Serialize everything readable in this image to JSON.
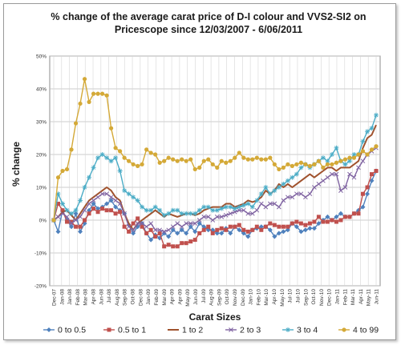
{
  "chart_data": {
    "type": "line",
    "title_line1": "% change  of the average carat price of  D-I colour and VVS2-SI2  on",
    "title_line2": "Pricescope since 12/03/2007 - 6/06/2011",
    "xlabel": "Carat Sizes",
    "ylabel": "% change",
    "ylim": [
      -20,
      50
    ],
    "yticks": [
      "-20%",
      "-10%",
      "0%",
      "10%",
      "20%",
      "30%",
      "40%",
      "50%"
    ],
    "ytick_values": [
      -20,
      -10,
      0,
      10,
      20,
      30,
      40,
      50
    ],
    "grid": true,
    "legend_position": "bottom",
    "x_tick_labels": [
      "Dec-07",
      "Jan-08",
      "Jan-08",
      "Feb-08",
      "Mar-08",
      "Apr-08",
      "Jun-08",
      "Jul-08",
      "Aug-08",
      "Sep-08",
      "Oct-08",
      "Dec-08",
      "Jan-09",
      "Feb-09",
      "Mar-09",
      "Apr-09",
      "Apr-09",
      "May-09",
      "Jun-09",
      "Jul-09",
      "Aug-09",
      "Sep-09",
      "Oct-09",
      "Nov-09",
      "Dec-09",
      "Jan-10",
      "Feb-10",
      "Mar-10",
      "Apr-10",
      "May-10",
      "Jul-10",
      "Jul-10",
      "Sep-10",
      "Oct-10",
      "Nov-10",
      "Dec-10",
      "Jan-11",
      "Feb-11",
      "Mar-11",
      "Apr-11",
      "May-11",
      "Jun-11"
    ],
    "series": [
      {
        "name": "0 to 0.5",
        "color": "#4f81bd",
        "marker": "diamond",
        "values": [
          0,
          -3.5,
          3,
          0,
          -2,
          2,
          -3.5,
          -1,
          3,
          5,
          3.5,
          4,
          5,
          6,
          4,
          3,
          2,
          -1.5,
          -4,
          -2,
          -1,
          -4,
          -6,
          -4.5,
          -5.5,
          -4,
          -5,
          -3,
          -4,
          -3,
          -4,
          -2,
          -3.5,
          -1,
          -2,
          -3,
          -3,
          -4,
          -4,
          -2.5,
          -4,
          -2,
          -3,
          -4,
          -5,
          -3,
          -2.5,
          -2,
          -2,
          -3,
          -5,
          -4,
          -3.5,
          -3,
          -1,
          -2,
          -3.5,
          -3,
          -2.5,
          -2.5,
          -1,
          0,
          1,
          0,
          1,
          2,
          1,
          1,
          2,
          3,
          4,
          8,
          12,
          15
        ]
      },
      {
        "name": "0.5 to 1",
        "color": "#c0504d",
        "marker": "square",
        "values": [
          0,
          5,
          3,
          -0.5,
          -0.5,
          -2,
          -2,
          0,
          2,
          3.5,
          2.5,
          3.5,
          3,
          3,
          2,
          2.5,
          -2,
          -3.5,
          -1,
          0.5,
          -2,
          -4,
          -3,
          -5,
          -4,
          -8,
          -7.5,
          -8,
          -8,
          -7,
          -7,
          -6.5,
          -6,
          -4,
          -3,
          -2,
          -4,
          -3,
          -2.5,
          -3,
          -2,
          -2,
          -1.5,
          -3,
          -3.5,
          -3,
          -2,
          -3,
          -2,
          -1,
          -1.5,
          -2,
          -2,
          -2,
          -1,
          -0.5,
          -1,
          -1.5,
          -1,
          -0.5,
          1,
          -0.5,
          -0.5,
          0,
          -0.5,
          0,
          1,
          1,
          2,
          2,
          8,
          10,
          14,
          15
        ]
      },
      {
        "name": "1 to 2",
        "color": "#a0522d",
        "marker": "none",
        "values": [
          0,
          1,
          2.5,
          3,
          1.5,
          0,
          2,
          4,
          6,
          7,
          8,
          9,
          10,
          9,
          7,
          6,
          2,
          -1,
          -3,
          -1,
          0,
          1,
          2,
          3,
          2,
          1,
          2,
          1.5,
          1,
          1.5,
          2,
          2,
          1.5,
          2,
          3,
          3.5,
          4,
          4,
          4,
          5,
          5,
          4,
          4.5,
          5,
          6,
          5.5,
          6,
          7,
          9,
          8,
          9,
          11,
          10,
          11,
          10,
          11,
          12,
          13,
          14,
          13,
          14,
          15,
          16,
          16,
          15,
          16,
          16,
          16,
          17,
          18,
          22,
          25,
          26,
          29
        ]
      },
      {
        "name": "2 to 3",
        "color": "#8064a2",
        "marker": "x",
        "values": [
          0,
          1,
          2,
          1,
          -1,
          0,
          1,
          3,
          5,
          6,
          7,
          8,
          8,
          7,
          6,
          5,
          2,
          -2,
          -3,
          -1,
          -1,
          -2,
          -1,
          -3,
          -3,
          -3.5,
          -3,
          -2,
          -1,
          -2,
          -1,
          -1,
          -1,
          0,
          1,
          1,
          0,
          1,
          1,
          1.5,
          2,
          2.5,
          3,
          3,
          2,
          2,
          3,
          5,
          4,
          5,
          5,
          4,
          6,
          7,
          7,
          8,
          8,
          7,
          8,
          10,
          11,
          12,
          13,
          14,
          14,
          9,
          10,
          14,
          13,
          16,
          18,
          20,
          21,
          22
        ]
      },
      {
        "name": "3 to 4",
        "color": "#4bacc6",
        "marker": "star",
        "values": [
          0,
          8,
          5,
          3,
          2,
          3,
          6,
          10,
          13,
          16,
          19,
          20,
          19,
          18,
          19,
          15,
          9,
          8,
          7,
          6,
          4,
          3,
          3,
          4,
          3,
          1.5,
          2,
          3,
          3,
          2,
          2,
          2,
          2,
          3,
          4,
          4,
          3,
          3,
          3.5,
          4,
          4,
          3.5,
          4,
          4.5,
          5,
          4,
          6,
          8,
          10,
          8,
          9,
          10,
          11,
          12,
          13,
          14,
          16,
          17,
          16,
          17,
          18,
          19,
          18,
          20,
          22,
          18,
          17,
          18,
          20,
          20,
          24,
          27,
          28,
          32
        ]
      },
      {
        "name": "4 to 99",
        "color": "#d4a937",
        "marker": "circle",
        "values": [
          0,
          13,
          15,
          15.5,
          21.5,
          29.5,
          35.5,
          43,
          36,
          38.5,
          38.5,
          38.5,
          38,
          28,
          22,
          21,
          19,
          18,
          17,
          16.5,
          17,
          21.5,
          20.5,
          20,
          17.5,
          18,
          19,
          18.5,
          18,
          18.5,
          18,
          18.5,
          15.5,
          16,
          18,
          18.5,
          17,
          16,
          18,
          17.5,
          18,
          19,
          20.5,
          19,
          18.5,
          18.5,
          19,
          18.5,
          18.5,
          19,
          17,
          15.5,
          16,
          17,
          16.5,
          17,
          17.5,
          17,
          16.5,
          17,
          18,
          16,
          17,
          17,
          17.5,
          18,
          18.5,
          19,
          19,
          20,
          21,
          20,
          21.5,
          22.5
        ]
      }
    ]
  }
}
